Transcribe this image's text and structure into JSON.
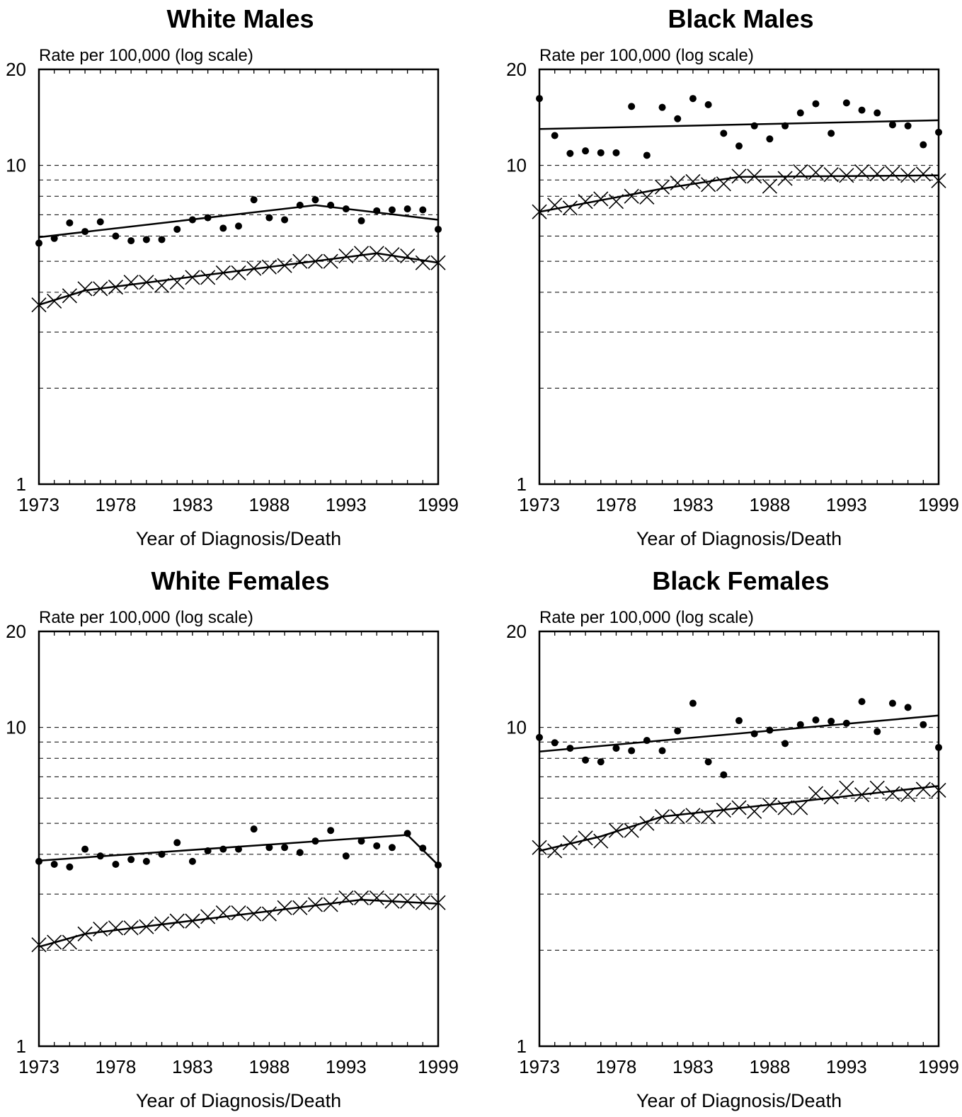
{
  "chart_data": [
    {
      "type": "scatter",
      "title": "White Males",
      "ylabel": "Rate per 100,000 (log scale)",
      "xlabel": "Year of Diagnosis/Death",
      "y_scale": "log",
      "ylim": [
        1,
        20
      ],
      "xlim": [
        1973,
        1999
      ],
      "x_ticks": [
        "1973",
        "1978",
        "1983",
        "1988",
        "1993",
        "1999"
      ],
      "y_ticks": [
        "1",
        "10",
        "20"
      ],
      "grid_y": [
        2,
        3,
        4,
        5,
        6,
        7,
        8,
        9,
        10
      ],
      "series": [
        {
          "marker": "dot",
          "x": [
            1973,
            1974,
            1975,
            1976,
            1977,
            1978,
            1979,
            1980,
            1981,
            1982,
            1983,
            1984,
            1985,
            1986,
            1987,
            1988,
            1989,
            1990,
            1991,
            1992,
            1993,
            1994,
            1995,
            1996,
            1997,
            1998,
            1999
          ],
          "values": [
            5.7,
            5.9,
            6.6,
            6.2,
            6.65,
            6.0,
            5.8,
            5.85,
            5.85,
            6.3,
            6.75,
            6.85,
            6.35,
            6.45,
            7.8,
            6.85,
            6.75,
            7.5,
            7.8,
            7.5,
            7.3,
            6.7,
            7.2,
            7.25,
            7.3,
            7.25,
            6.3
          ]
        },
        {
          "marker": "x",
          "x": [
            1973,
            1974,
            1975,
            1976,
            1977,
            1978,
            1979,
            1980,
            1981,
            1982,
            1983,
            1984,
            1985,
            1986,
            1987,
            1988,
            1989,
            1990,
            1991,
            1992,
            1993,
            1994,
            1995,
            1996,
            1997,
            1998,
            1999
          ],
          "values": [
            3.65,
            3.75,
            3.9,
            4.1,
            4.1,
            4.15,
            4.3,
            4.3,
            4.2,
            4.3,
            4.45,
            4.45,
            4.6,
            4.6,
            4.75,
            4.8,
            4.85,
            5.0,
            5.0,
            5.0,
            5.2,
            5.3,
            5.3,
            5.25,
            5.2,
            4.95,
            4.95
          ]
        },
        {
          "marker": "line",
          "x": [
            1973,
            1991,
            1999
          ],
          "values": [
            5.95,
            7.5,
            6.75
          ]
        },
        {
          "marker": "line",
          "x": [
            1973,
            1976,
            1995,
            1999
          ],
          "values": [
            3.65,
            4.05,
            5.3,
            4.95
          ]
        }
      ]
    },
    {
      "type": "scatter",
      "title": "Black Males",
      "ylabel": "Rate per 100,000 (log scale)",
      "xlabel": "Year of Diagnosis/Death",
      "y_scale": "log",
      "ylim": [
        1,
        20
      ],
      "xlim": [
        1973,
        1999
      ],
      "x_ticks": [
        "1973",
        "1978",
        "1983",
        "1988",
        "1993",
        "1999"
      ],
      "y_ticks": [
        "1",
        "10",
        "20"
      ],
      "grid_y": [
        2,
        3,
        4,
        5,
        6,
        7,
        8,
        9,
        10
      ],
      "series": [
        {
          "marker": "dot",
          "x": [
            1973,
            1974,
            1975,
            1976,
            1977,
            1978,
            1979,
            1980,
            1981,
            1982,
            1983,
            1984,
            1985,
            1986,
            1987,
            1988,
            1989,
            1990,
            1991,
            1992,
            1993,
            1994,
            1995,
            1996,
            1997,
            1998,
            1999
          ],
          "values": [
            16.2,
            12.4,
            10.9,
            11.1,
            10.95,
            10.95,
            15.3,
            10.75,
            15.2,
            14.0,
            16.2,
            15.5,
            12.6,
            11.5,
            13.3,
            12.1,
            13.3,
            14.6,
            15.6,
            12.6,
            15.7,
            14.9,
            14.6,
            13.4,
            13.3,
            11.6,
            12.7
          ]
        },
        {
          "marker": "x",
          "x": [
            1973,
            1974,
            1975,
            1976,
            1977,
            1978,
            1979,
            1980,
            1981,
            1982,
            1983,
            1984,
            1985,
            1986,
            1987,
            1988,
            1989,
            1990,
            1991,
            1992,
            1993,
            1994,
            1995,
            1996,
            1997,
            1998,
            1999
          ],
          "values": [
            7.15,
            7.5,
            7.35,
            7.7,
            7.85,
            7.7,
            8.0,
            7.95,
            8.55,
            8.8,
            8.9,
            8.7,
            8.75,
            9.25,
            9.25,
            8.6,
            9.1,
            9.55,
            9.5,
            9.35,
            9.3,
            9.55,
            9.4,
            9.45,
            9.3,
            9.4,
            8.95
          ]
        },
        {
          "marker": "line",
          "x": [
            1973,
            1999
          ],
          "values": [
            13.0,
            13.85
          ]
        },
        {
          "marker": "line",
          "x": [
            1973,
            1981,
            1986,
            1999
          ],
          "values": [
            7.15,
            8.45,
            9.2,
            9.3
          ]
        }
      ]
    },
    {
      "type": "scatter",
      "title": "White Females",
      "ylabel": "Rate per 100,000 (log scale)",
      "xlabel": "Year of Diagnosis/Death",
      "y_scale": "log",
      "ylim": [
        1,
        20
      ],
      "xlim": [
        1973,
        1999
      ],
      "x_ticks": [
        "1973",
        "1978",
        "1983",
        "1988",
        "1993",
        "1999"
      ],
      "y_ticks": [
        "1",
        "10",
        "20"
      ],
      "grid_y": [
        2,
        3,
        4,
        5,
        6,
        7,
        8,
        9,
        10
      ],
      "series": [
        {
          "marker": "dot",
          "x": [
            1973,
            1974,
            1975,
            1976,
            1977,
            1978,
            1979,
            1980,
            1981,
            1982,
            1983,
            1984,
            1985,
            1986,
            1987,
            1988,
            1989,
            1990,
            1991,
            1992,
            1993,
            1994,
            1995,
            1996,
            1997,
            1998,
            1999
          ],
          "values": [
            3.8,
            3.72,
            3.65,
            4.15,
            3.95,
            3.72,
            3.85,
            3.8,
            4.0,
            4.35,
            3.8,
            4.1,
            4.15,
            4.15,
            4.8,
            4.2,
            4.2,
            4.05,
            4.4,
            4.75,
            3.95,
            4.4,
            4.25,
            4.2,
            4.65,
            4.18,
            3.7
          ]
        },
        {
          "marker": "x",
          "x": [
            1973,
            1974,
            1975,
            1976,
            1977,
            1978,
            1979,
            1980,
            1981,
            1982,
            1983,
            1984,
            1985,
            1986,
            1987,
            1988,
            1989,
            1990,
            1991,
            1992,
            1993,
            1994,
            1995,
            1996,
            1997,
            1998,
            1999
          ],
          "values": [
            2.08,
            2.12,
            2.12,
            2.25,
            2.33,
            2.35,
            2.35,
            2.37,
            2.42,
            2.47,
            2.47,
            2.55,
            2.62,
            2.62,
            2.6,
            2.6,
            2.72,
            2.72,
            2.78,
            2.78,
            2.92,
            2.92,
            2.92,
            2.85,
            2.85,
            2.82,
            2.82
          ]
        },
        {
          "marker": "line",
          "x": [
            1973,
            1997,
            1999
          ],
          "values": [
            3.82,
            4.6,
            3.7
          ]
        },
        {
          "marker": "line",
          "x": [
            1973,
            1976,
            1994,
            1999
          ],
          "values": [
            2.05,
            2.25,
            2.88,
            2.8
          ]
        }
      ]
    },
    {
      "type": "scatter",
      "title": "Black Females",
      "ylabel": "Rate per 100,000 (log scale)",
      "xlabel": "Year of Diagnosis/Death",
      "y_scale": "log",
      "ylim": [
        1,
        20
      ],
      "xlim": [
        1973,
        1999
      ],
      "x_ticks": [
        "1973",
        "1978",
        "1983",
        "1988",
        "1993",
        "1999"
      ],
      "y_ticks": [
        "1",
        "10",
        "20"
      ],
      "grid_y": [
        2,
        3,
        4,
        5,
        6,
        7,
        8,
        9,
        10
      ],
      "series": [
        {
          "marker": "dot",
          "x": [
            1973,
            1974,
            1975,
            1976,
            1977,
            1978,
            1979,
            1980,
            1981,
            1982,
            1983,
            1984,
            1985,
            1986,
            1987,
            1988,
            1989,
            1990,
            1991,
            1992,
            1993,
            1994,
            1995,
            1996,
            1997,
            1998,
            1999
          ],
          "values": [
            9.3,
            8.95,
            8.6,
            7.9,
            7.8,
            8.6,
            8.45,
            9.1,
            8.45,
            9.75,
            11.9,
            7.8,
            7.1,
            10.5,
            9.55,
            9.8,
            8.9,
            10.2,
            10.55,
            10.45,
            10.3,
            12.05,
            9.7,
            11.9,
            11.55,
            10.2,
            8.65
          ]
        },
        {
          "marker": "x",
          "x": [
            1973,
            1974,
            1975,
            1976,
            1977,
            1978,
            1979,
            1980,
            1981,
            1982,
            1983,
            1984,
            1985,
            1986,
            1987,
            1988,
            1989,
            1990,
            1991,
            1992,
            1993,
            1994,
            1995,
            1996,
            1997,
            1998,
            1999
          ],
          "values": [
            4.2,
            4.1,
            4.35,
            4.5,
            4.4,
            4.75,
            4.75,
            5.0,
            5.25,
            5.25,
            5.3,
            5.25,
            5.5,
            5.6,
            5.45,
            5.7,
            5.6,
            5.6,
            6.2,
            6.05,
            6.45,
            6.15,
            6.45,
            6.2,
            6.15,
            6.4,
            6.35
          ]
        },
        {
          "marker": "line",
          "x": [
            1973,
            1999
          ],
          "values": [
            8.4,
            10.9
          ]
        },
        {
          "marker": "line",
          "x": [
            1973,
            1977,
            1981,
            1999
          ],
          "values": [
            4.1,
            4.55,
            5.25,
            6.55
          ]
        }
      ]
    }
  ]
}
